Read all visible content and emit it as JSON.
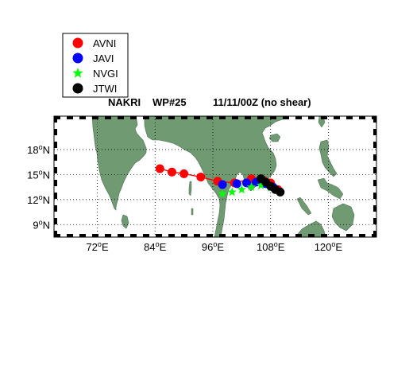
{
  "title": {
    "storm": "NAKRI",
    "product": "WP#25",
    "datetime": "11/11/00Z (no shear)"
  },
  "map": {
    "lon_range": [
      63,
      130
    ],
    "lat_range": [
      7.5,
      22
    ],
    "lat_ticks": [
      {
        "value": 18,
        "deg": "18",
        "hemi": "N"
      },
      {
        "value": 15,
        "deg": "15",
        "hemi": "N"
      },
      {
        "value": 12,
        "deg": "12",
        "hemi": "N"
      },
      {
        "value": 9,
        "deg": "9",
        "hemi": "N"
      }
    ],
    "lon_ticks": [
      {
        "value": 72,
        "deg": "72",
        "hemi": "E"
      },
      {
        "value": 84,
        "deg": "84",
        "hemi": "E"
      },
      {
        "value": 96,
        "deg": "96",
        "hemi": "E"
      },
      {
        "value": 108,
        "deg": "108",
        "hemi": "E"
      },
      {
        "value": 120,
        "deg": "120",
        "hemi": "E"
      }
    ],
    "grid": true,
    "colors": {
      "land": "#6f9a72",
      "land_edge": "#4d6f52",
      "ocean": "#ffffff",
      "track_line": "#ff0000"
    }
  },
  "legend": {
    "position": "top-left",
    "items": [
      {
        "label": "AVNI",
        "color": "#ff0000",
        "marker": "circle"
      },
      {
        "label": "JAVI",
        "color": "#0000ff",
        "marker": "circle"
      },
      {
        "label": "NVGI",
        "color": "#00ff00",
        "marker": "star"
      },
      {
        "label": "JTWI",
        "color": "#000000",
        "marker": "circle"
      }
    ]
  },
  "chart_data": {
    "type": "scatter",
    "xlabel": "",
    "ylabel": "",
    "xlim": [
      63,
      130
    ],
    "ylim": [
      7.5,
      22
    ],
    "grid": true,
    "series": [
      {
        "name": "AVNI",
        "color": "#ff0000",
        "marker": "circle",
        "points": [
          [
            85,
            15.7
          ],
          [
            87.5,
            15.3
          ],
          [
            90,
            15.1
          ],
          [
            93.5,
            14.7
          ],
          [
            97,
            14.2
          ],
          [
            100.5,
            14.0
          ],
          [
            104,
            14.5
          ],
          [
            106.5,
            14.3
          ],
          [
            108,
            14.0
          ],
          [
            109.5,
            13.2
          ]
        ]
      },
      {
        "name": "JAVI",
        "color": "#0000ff",
        "marker": "circle",
        "points": [
          [
            98,
            13.8
          ],
          [
            101,
            13.9
          ],
          [
            103,
            14.0
          ],
          [
            105,
            14.1
          ],
          [
            107,
            13.9
          ],
          [
            108.5,
            13.5
          ]
        ]
      },
      {
        "name": "NVGI",
        "color": "#00ff00",
        "marker": "star",
        "points": [
          [
            98,
            12.7
          ],
          [
            100,
            12.9
          ],
          [
            102,
            13.2
          ],
          [
            104,
            13.5
          ],
          [
            106,
            13.7
          ],
          [
            108,
            13.4
          ]
        ]
      },
      {
        "name": "JTWI",
        "color": "#000000",
        "marker": "circle",
        "points": [
          [
            106,
            14.5
          ],
          [
            107,
            14.1
          ],
          [
            108,
            13.6
          ],
          [
            109,
            13.2
          ],
          [
            110,
            12.9
          ]
        ]
      }
    ]
  }
}
